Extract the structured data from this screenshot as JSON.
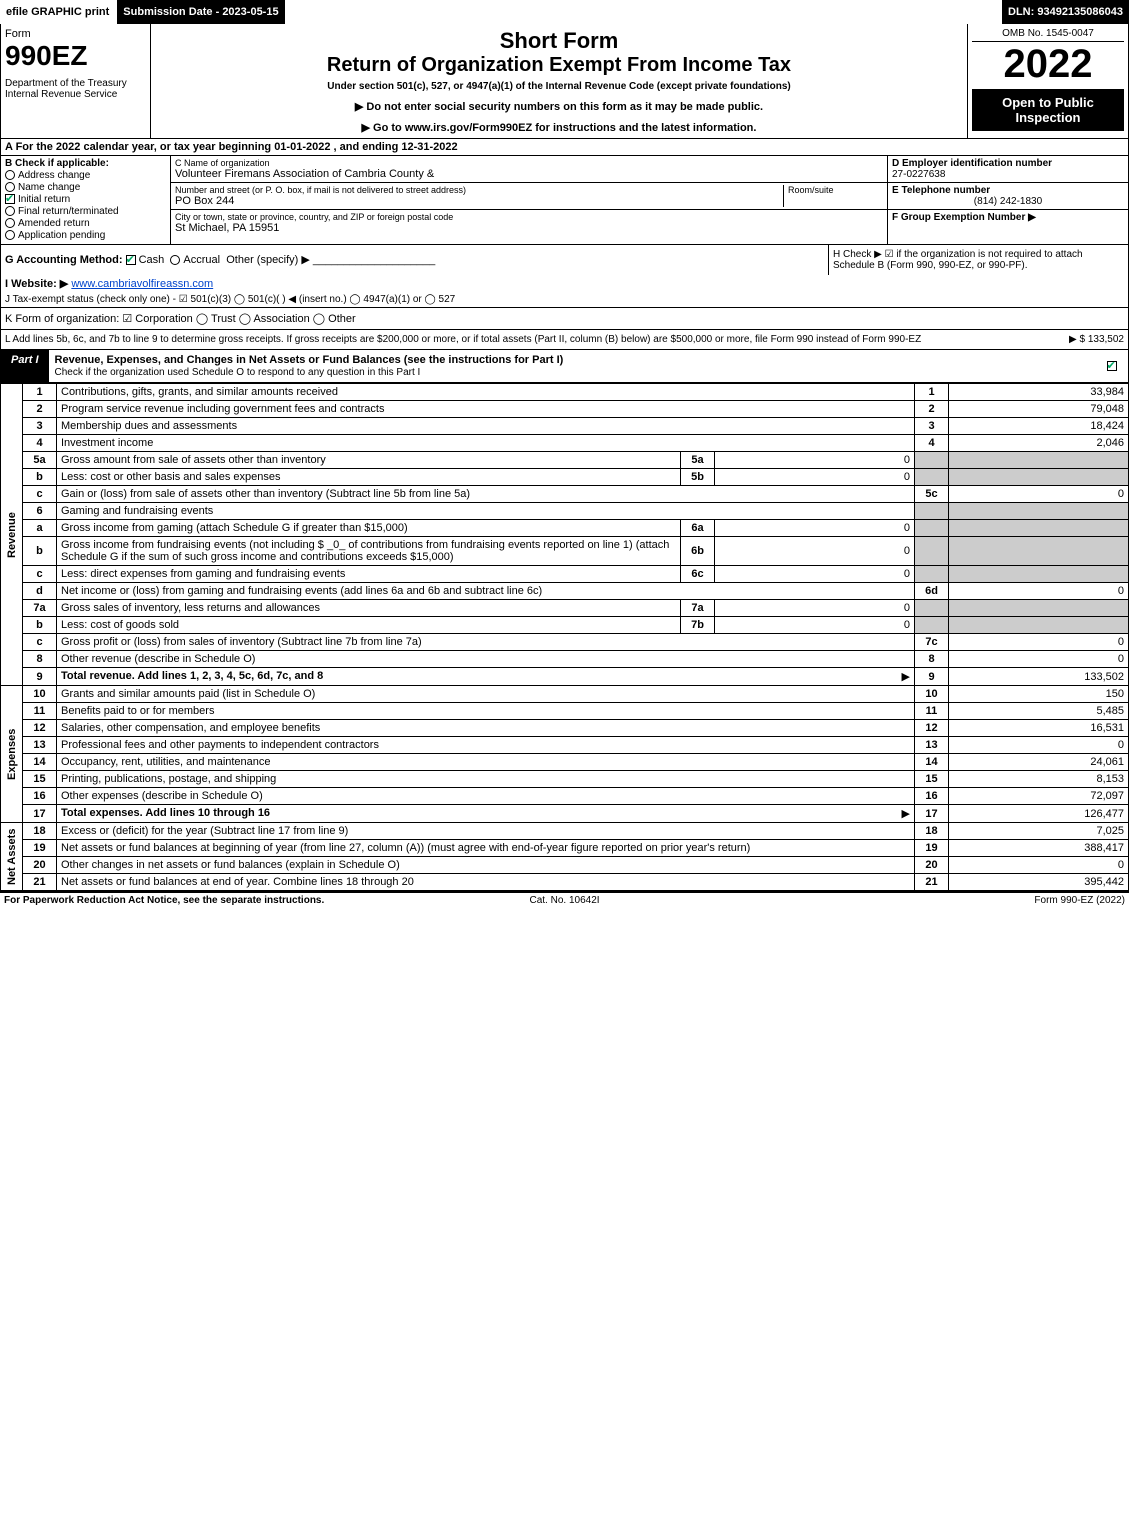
{
  "topbar": {
    "efile": "efile GRAPHIC print",
    "subdate": "Submission Date - 2023-05-15",
    "dln": "DLN: 93492135086043"
  },
  "header": {
    "form": "Form",
    "formno": "990EZ",
    "dept": "Department of the Treasury\nInternal Revenue Service",
    "sf": "Short Form",
    "ro": "Return of Organization Exempt From Income Tax",
    "sub": "Under section 501(c), 527, or 4947(a)(1) of the Internal Revenue Code (except private foundations)",
    "warn1": "▶ Do not enter social security numbers on this form as it may be made public.",
    "warn2": "▶ Go to www.irs.gov/Form990EZ for instructions and the latest information.",
    "omb": "OMB No. 1545-0047",
    "year": "2022",
    "badge": "Open to Public Inspection"
  },
  "rowA": "A  For the 2022 calendar year, or tax year beginning 01-01-2022  , and ending 12-31-2022",
  "B": {
    "title": "B  Check if applicable:",
    "items": [
      {
        "label": "Address change",
        "checked": false
      },
      {
        "label": "Name change",
        "checked": false
      },
      {
        "label": "Initial return",
        "checked": true
      },
      {
        "label": "Final return/terminated",
        "checked": false
      },
      {
        "label": "Amended return",
        "checked": false
      },
      {
        "label": "Application pending",
        "checked": false
      }
    ]
  },
  "C": {
    "name_lbl": "C Name of organization",
    "name": "Volunteer Firemans Association of Cambria County &",
    "addr_lbl": "Number and street (or P. O. box, if mail is not delivered to street address)",
    "addr": "PO Box 244",
    "room_lbl": "Room/suite",
    "city_lbl": "City or town, state or province, country, and ZIP or foreign postal code",
    "city": "St Michael, PA  15951"
  },
  "D": {
    "lbl": "D Employer identification number",
    "val": "27-0227638"
  },
  "E": {
    "lbl": "E Telephone number",
    "val": "(814) 242-1830"
  },
  "F": {
    "lbl": "F Group Exemption Number  ▶",
    "val": ""
  },
  "G": {
    "lbl": "G Accounting Method:",
    "cash": "Cash",
    "accrual": "Accrual",
    "other": "Other (specify) ▶"
  },
  "H": {
    "txt": "H  Check ▶ ☑ if the organization is not required to attach Schedule B (Form 990, 990-EZ, or 990-PF)."
  },
  "I": {
    "lbl": "I Website: ▶",
    "val": "www.cambriavolfireassn.com"
  },
  "J": {
    "txt": "J Tax-exempt status (check only one) - ☑ 501(c)(3)  ◯ 501(c)(  ) ◀ (insert no.)  ◯ 4947(a)(1) or  ◯ 527"
  },
  "K": {
    "txt": "K Form of organization:  ☑ Corporation  ◯ Trust  ◯ Association  ◯ Other"
  },
  "L": {
    "txt": "L Add lines 5b, 6c, and 7b to line 9 to determine gross receipts. If gross receipts are $200,000 or more, or if total assets (Part II, column (B) below) are $500,000 or more, file Form 990 instead of Form 990-EZ",
    "amt": "▶ $ 133,502"
  },
  "part1": {
    "tag": "Part I",
    "title": "Revenue, Expenses, and Changes in Net Assets or Fund Balances (see the instructions for Part I)",
    "sub": "Check if the organization used Schedule O to respond to any question in this Part I"
  },
  "sidelabels": {
    "rev": "Revenue",
    "exp": "Expenses",
    "net": "Net Assets"
  },
  "lines": {
    "l1": {
      "n": "1",
      "d": "Contributions, gifts, grants, and similar amounts received",
      "r": "1",
      "a": "33,984"
    },
    "l2": {
      "n": "2",
      "d": "Program service revenue including government fees and contracts",
      "r": "2",
      "a": "79,048"
    },
    "l3": {
      "n": "3",
      "d": "Membership dues and assessments",
      "r": "3",
      "a": "18,424"
    },
    "l4": {
      "n": "4",
      "d": "Investment income",
      "r": "4",
      "a": "2,046"
    },
    "l5a": {
      "n": "5a",
      "d": "Gross amount from sale of assets other than inventory",
      "sl": "5a",
      "sv": "0"
    },
    "l5b": {
      "n": "b",
      "d": "Less: cost or other basis and sales expenses",
      "sl": "5b",
      "sv": "0"
    },
    "l5c": {
      "n": "c",
      "d": "Gain or (loss) from sale of assets other than inventory (Subtract line 5b from line 5a)",
      "r": "5c",
      "a": "0"
    },
    "l6": {
      "n": "6",
      "d": "Gaming and fundraising events"
    },
    "l6a": {
      "n": "a",
      "d": "Gross income from gaming (attach Schedule G if greater than $15,000)",
      "sl": "6a",
      "sv": "0"
    },
    "l6b": {
      "n": "b",
      "d": "Gross income from fundraising events (not including $ _0_ of contributions from fundraising events reported on line 1) (attach Schedule G if the sum of such gross income and contributions exceeds $15,000)",
      "sl": "6b",
      "sv": "0"
    },
    "l6c": {
      "n": "c",
      "d": "Less: direct expenses from gaming and fundraising events",
      "sl": "6c",
      "sv": "0"
    },
    "l6d": {
      "n": "d",
      "d": "Net income or (loss) from gaming and fundraising events (add lines 6a and 6b and subtract line 6c)",
      "r": "6d",
      "a": "0"
    },
    "l7a": {
      "n": "7a",
      "d": "Gross sales of inventory, less returns and allowances",
      "sl": "7a",
      "sv": "0"
    },
    "l7b": {
      "n": "b",
      "d": "Less: cost of goods sold",
      "sl": "7b",
      "sv": "0"
    },
    "l7c": {
      "n": "c",
      "d": "Gross profit or (loss) from sales of inventory (Subtract line 7b from line 7a)",
      "r": "7c",
      "a": "0"
    },
    "l8": {
      "n": "8",
      "d": "Other revenue (describe in Schedule O)",
      "r": "8",
      "a": "0"
    },
    "l9": {
      "n": "9",
      "d": "Total revenue. Add lines 1, 2, 3, 4, 5c, 6d, 7c, and 8",
      "r": "9",
      "a": "133,502",
      "arrow": "▶"
    },
    "l10": {
      "n": "10",
      "d": "Grants and similar amounts paid (list in Schedule O)",
      "r": "10",
      "a": "150"
    },
    "l11": {
      "n": "11",
      "d": "Benefits paid to or for members",
      "r": "11",
      "a": "5,485"
    },
    "l12": {
      "n": "12",
      "d": "Salaries, other compensation, and employee benefits",
      "r": "12",
      "a": "16,531"
    },
    "l13": {
      "n": "13",
      "d": "Professional fees and other payments to independent contractors",
      "r": "13",
      "a": "0"
    },
    "l14": {
      "n": "14",
      "d": "Occupancy, rent, utilities, and maintenance",
      "r": "14",
      "a": "24,061"
    },
    "l15": {
      "n": "15",
      "d": "Printing, publications, postage, and shipping",
      "r": "15",
      "a": "8,153"
    },
    "l16": {
      "n": "16",
      "d": "Other expenses (describe in Schedule O)",
      "r": "16",
      "a": "72,097"
    },
    "l17": {
      "n": "17",
      "d": "Total expenses. Add lines 10 through 16",
      "r": "17",
      "a": "126,477",
      "arrow": "▶"
    },
    "l18": {
      "n": "18",
      "d": "Excess or (deficit) for the year (Subtract line 17 from line 9)",
      "r": "18",
      "a": "7,025"
    },
    "l19": {
      "n": "19",
      "d": "Net assets or fund balances at beginning of year (from line 27, column (A)) (must agree with end-of-year figure reported on prior year's return)",
      "r": "19",
      "a": "388,417"
    },
    "l20": {
      "n": "20",
      "d": "Other changes in net assets or fund balances (explain in Schedule O)",
      "r": "20",
      "a": "0"
    },
    "l21": {
      "n": "21",
      "d": "Net assets or fund balances at end of year. Combine lines 18 through 20",
      "r": "21",
      "a": "395,442"
    }
  },
  "footer": {
    "l": "For Paperwork Reduction Act Notice, see the separate instructions.",
    "c": "Cat. No. 10642I",
    "r": "Form 990-EZ (2022)"
  }
}
